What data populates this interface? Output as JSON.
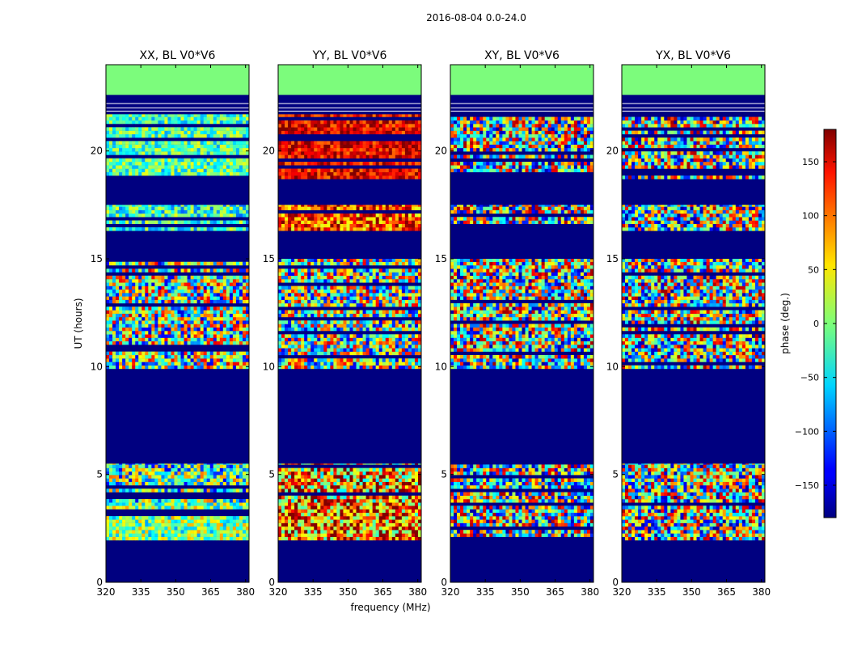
{
  "figure": {
    "suptitle": "2016-08-04 0.0-24.0",
    "xlabel": "frequency (MHz)",
    "ylabel": "UT (hours)",
    "colorbar_label": "phase (deg.)",
    "colorbar_ticks": [
      150,
      100,
      50,
      0,
      -50,
      -100,
      -150
    ],
    "colorbar_range": [
      -180,
      180
    ],
    "colormap": "jet",
    "colors": {
      "masked": "#000080",
      "flagged_top": "#7cfc7c",
      "frame": "#000000"
    }
  },
  "chart_data": [
    {
      "type": "heatmap",
      "title": "XX, BL V0*V6",
      "xlabel": "",
      "ylabel": "UT (hours)",
      "xlim": [
        320,
        381.5
      ],
      "ylim": [
        0,
        24
      ],
      "xticks": [
        320,
        335,
        350,
        365,
        380
      ],
      "yticks": [
        0,
        5,
        10,
        15,
        20
      ],
      "value": "phase (deg.)",
      "masked_utc_ranges": [
        [
          0,
          1.95
        ],
        [
          5.5,
          9.9
        ],
        [
          16.2,
          16.3
        ],
        [
          18.6,
          18.7
        ]
      ],
      "flagged_utc_ranges": [
        [
          22.6,
          24
        ]
      ],
      "bands": [
        {
          "ut": [
            1.95,
            3.7
          ],
          "phase_mean": 0,
          "spread": 80
        },
        {
          "ut": [
            3.7,
            5.5
          ],
          "phase_mean": -20,
          "spread": 120
        },
        {
          "ut": [
            9.9,
            15.0
          ],
          "phase_mean": 0,
          "spread": 150
        },
        {
          "ut": [
            16.3,
            17.5
          ],
          "phase_mean": -30,
          "spread": 70
        },
        {
          "ut": [
            18.7,
            21.7
          ],
          "phase_mean": -20,
          "spread": 60
        }
      ]
    },
    {
      "type": "heatmap",
      "title": "YY, BL V0*V6",
      "xlabel": "frequency (MHz)",
      "ylabel": "",
      "xlim": [
        320,
        381.5
      ],
      "ylim": [
        0,
        24
      ],
      "xticks": [
        320,
        335,
        350,
        365,
        380
      ],
      "yticks": [
        0,
        5,
        10,
        15,
        20
      ],
      "value": "phase (deg.)",
      "masked_utc_ranges": [
        [
          0,
          1.95
        ],
        [
          5.5,
          9.9
        ],
        [
          16.2,
          16.3
        ],
        [
          18.6,
          18.7
        ]
      ],
      "flagged_utc_ranges": [
        [
          22.6,
          24
        ]
      ],
      "bands": [
        {
          "ut": [
            1.95,
            3.7
          ],
          "phase_mean": 90,
          "spread": 120
        },
        {
          "ut": [
            3.7,
            5.5
          ],
          "phase_mean": 80,
          "spread": 140
        },
        {
          "ut": [
            9.9,
            15.0
          ],
          "phase_mean": 0,
          "spread": 150
        },
        {
          "ut": [
            16.3,
            17.5
          ],
          "phase_mean": 110,
          "spread": 80
        },
        {
          "ut": [
            18.7,
            21.7
          ],
          "phase_mean": 140,
          "spread": 50
        }
      ]
    },
    {
      "type": "heatmap",
      "title": "XY, BL V0*V6",
      "xlabel": "",
      "ylabel": "",
      "xlim": [
        320,
        381.5
      ],
      "ylim": [
        0,
        24
      ],
      "xticks": [
        320,
        335,
        350,
        365,
        380
      ],
      "yticks": [
        0,
        5,
        10,
        15,
        20
      ],
      "value": "phase (deg.)",
      "masked_utc_ranges": [
        [
          0,
          1.95
        ],
        [
          5.5,
          9.9
        ],
        [
          16.2,
          16.3
        ],
        [
          18.6,
          18.7
        ]
      ],
      "flagged_utc_ranges": [
        [
          22.6,
          24
        ]
      ],
      "bands": [
        {
          "ut": [
            1.95,
            3.7
          ],
          "phase_mean": 0,
          "spread": 170
        },
        {
          "ut": [
            3.7,
            5.5
          ],
          "phase_mean": 0,
          "spread": 170
        },
        {
          "ut": [
            9.9,
            15.0
          ],
          "phase_mean": 0,
          "spread": 170
        },
        {
          "ut": [
            16.3,
            17.5
          ],
          "phase_mean": 0,
          "spread": 170
        },
        {
          "ut": [
            18.7,
            21.7
          ],
          "phase_mean": 0,
          "spread": 170
        }
      ]
    },
    {
      "type": "heatmap",
      "title": "YX, BL V0*V6",
      "xlabel": "",
      "ylabel": "",
      "xlim": [
        320,
        381.5
      ],
      "ylim": [
        0,
        24
      ],
      "xticks": [
        320,
        335,
        350,
        365,
        380
      ],
      "yticks": [
        0,
        5,
        10,
        15,
        20
      ],
      "value": "phase (deg.)",
      "masked_utc_ranges": [
        [
          0,
          1.95
        ],
        [
          5.5,
          9.9
        ],
        [
          16.2,
          16.3
        ],
        [
          18.6,
          18.7
        ]
      ],
      "flagged_utc_ranges": [
        [
          22.6,
          24
        ]
      ],
      "bands": [
        {
          "ut": [
            1.95,
            3.7
          ],
          "phase_mean": 0,
          "spread": 170
        },
        {
          "ut": [
            3.7,
            5.5
          ],
          "phase_mean": 0,
          "spread": 170
        },
        {
          "ut": [
            9.9,
            15.0
          ],
          "phase_mean": 0,
          "spread": 170
        },
        {
          "ut": [
            16.3,
            17.5
          ],
          "phase_mean": 0,
          "spread": 170
        },
        {
          "ut": [
            18.7,
            21.7
          ],
          "phase_mean": 0,
          "spread": 170
        }
      ]
    }
  ]
}
